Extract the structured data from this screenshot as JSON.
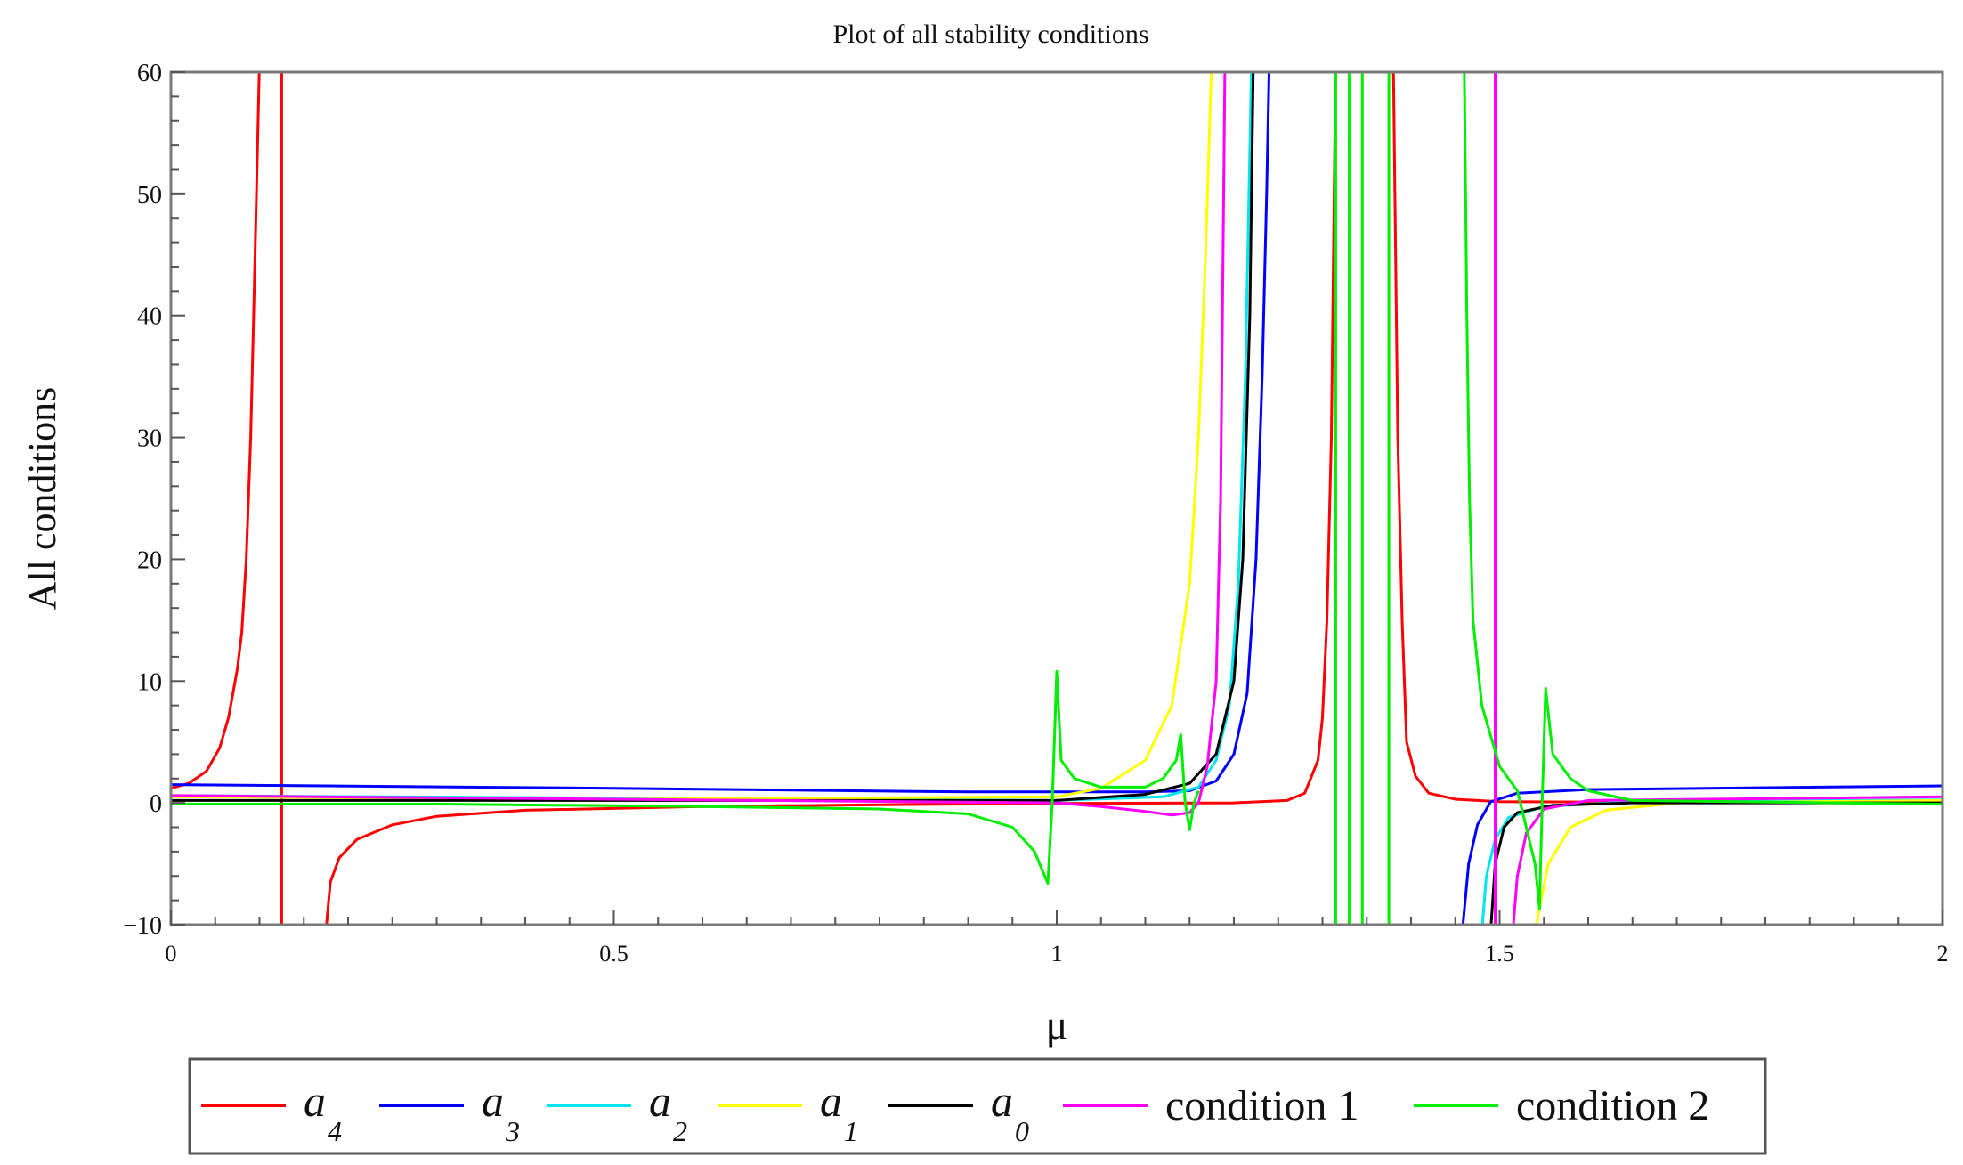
{
  "chart_data": {
    "type": "line",
    "title": "Plot of all stability conditions",
    "xlabel": "μ",
    "ylabel": "All conditions",
    "xlim": [
      0,
      2
    ],
    "ylim": [
      -10,
      60
    ],
    "x_ticks": [
      0,
      0.5,
      1,
      1.5,
      2
    ],
    "x_tick_labels": [
      "0",
      "0.5",
      "1",
      "1.5",
      "2"
    ],
    "y_ticks": [
      -10,
      0,
      10,
      20,
      30,
      40,
      50,
      60
    ],
    "y_tick_labels": [
      "−10",
      "0",
      "10",
      "20",
      "30",
      "40",
      "50",
      "60"
    ],
    "grid": false,
    "legend_position": "bottom",
    "series": [
      {
        "name": "a",
        "subscript": "4",
        "color": "#ff0000",
        "segments": [
          [
            [
              0,
              1.2
            ],
            [
              0.02,
              1.6
            ],
            [
              0.04,
              2.6
            ],
            [
              0.055,
              4.5
            ],
            [
              0.065,
              7
            ],
            [
              0.075,
              11
            ],
            [
              0.08,
              14
            ],
            [
              0.085,
              20
            ],
            [
              0.09,
              30
            ],
            [
              0.095,
              45
            ],
            [
              0.1,
              61
            ]
          ],
          [
            [
              0.125,
              -10.5
            ],
            [
              0.125,
              61
            ]
          ],
          [
            [
              0.175,
              -10.5
            ],
            [
              0.18,
              -6.5
            ],
            [
              0.19,
              -4.5
            ],
            [
              0.21,
              -3.0
            ],
            [
              0.25,
              -1.8
            ],
            [
              0.3,
              -1.1
            ],
            [
              0.4,
              -0.6
            ],
            [
              0.6,
              -0.3
            ],
            [
              0.8,
              -0.15
            ],
            [
              1.0,
              -0.05
            ],
            [
              1.2,
              0.0
            ],
            [
              1.26,
              0.2
            ],
            [
              1.28,
              0.8
            ],
            [
              1.295,
              3.5
            ],
            [
              1.3,
              7
            ],
            [
              1.305,
              15
            ],
            [
              1.31,
              30
            ],
            [
              1.315,
              61
            ]
          ],
          [
            [
              1.38,
              61
            ],
            [
              1.385,
              30
            ],
            [
              1.39,
              15
            ],
            [
              1.395,
              5
            ],
            [
              1.405,
              2.2
            ],
            [
              1.42,
              0.8
            ],
            [
              1.45,
              0.3
            ],
            [
              1.5,
              0.1
            ],
            [
              1.7,
              0.05
            ],
            [
              2.0,
              0.02
            ]
          ]
        ]
      },
      {
        "name": "a",
        "subscript": "3",
        "color": "#0000ff",
        "segments": [
          [
            [
              0,
              1.5
            ],
            [
              0.5,
              1.2
            ],
            [
              0.9,
              0.9
            ],
            [
              1.1,
              0.9
            ],
            [
              1.15,
              1.0
            ],
            [
              1.18,
              1.8
            ],
            [
              1.2,
              4
            ],
            [
              1.215,
              9
            ],
            [
              1.225,
              20
            ],
            [
              1.232,
              35
            ],
            [
              1.237,
              50
            ],
            [
              1.24,
              61
            ]
          ],
          [
            [
              1.458,
              -10.5
            ],
            [
              1.465,
              -5
            ],
            [
              1.475,
              -1.8
            ],
            [
              1.49,
              0.1
            ],
            [
              1.52,
              0.8
            ],
            [
              1.6,
              1.1
            ],
            [
              2.0,
              1.4
            ]
          ]
        ]
      },
      {
        "name": "a",
        "subscript": "2",
        "color": "#00e5ee",
        "segments": [
          [
            [
              0,
              0.6
            ],
            [
              0.5,
              0.4
            ],
            [
              1.0,
              0.2
            ],
            [
              1.12,
              0.5
            ],
            [
              1.16,
              1.3
            ],
            [
              1.18,
              3.5
            ],
            [
              1.195,
              8
            ],
            [
              1.205,
              18
            ],
            [
              1.213,
              35
            ],
            [
              1.22,
              61
            ]
          ],
          [
            [
              1.48,
              -10.5
            ],
            [
              1.485,
              -6
            ],
            [
              1.495,
              -3
            ],
            [
              1.51,
              -1.2
            ],
            [
              1.55,
              -0.3
            ],
            [
              1.65,
              0.1
            ],
            [
              2.0,
              0.25
            ]
          ]
        ]
      },
      {
        "name": "a",
        "subscript": "1",
        "color": "#ffff00",
        "segments": [
          [
            [
              0,
              0.5
            ],
            [
              0.5,
              0.3
            ],
            [
              1.0,
              0.5
            ],
            [
              1.05,
              1.2
            ],
            [
              1.1,
              3.5
            ],
            [
              1.13,
              8
            ],
            [
              1.15,
              18
            ],
            [
              1.16,
              30
            ],
            [
              1.168,
              45
            ],
            [
              1.175,
              61
            ]
          ],
          [
            [
              1.54,
              -10.5
            ],
            [
              1.555,
              -5
            ],
            [
              1.58,
              -2
            ],
            [
              1.62,
              -0.6
            ],
            [
              1.7,
              0
            ],
            [
              2.0,
              0.2
            ]
          ]
        ]
      },
      {
        "name": "a",
        "subscript": "0",
        "color": "#000000",
        "segments": [
          [
            [
              0,
              0.2
            ],
            [
              0.5,
              0.2
            ],
            [
              1.0,
              0.2
            ],
            [
              1.1,
              0.7
            ],
            [
              1.15,
              1.6
            ],
            [
              1.18,
              4
            ],
            [
              1.2,
              10
            ],
            [
              1.21,
              20
            ],
            [
              1.218,
              40
            ],
            [
              1.222,
              61
            ]
          ],
          [
            [
              1.49,
              -10.5
            ],
            [
              1.495,
              -5
            ],
            [
              1.505,
              -2
            ],
            [
              1.52,
              -0.8
            ],
            [
              1.56,
              -0.2
            ],
            [
              1.65,
              0
            ],
            [
              2.0,
              0
            ]
          ]
        ]
      },
      {
        "name": "condition 1",
        "subscript": "",
        "color": "#ff00ff",
        "segments": [
          [
            [
              0,
              0.6
            ],
            [
              0.5,
              0.3
            ],
            [
              1.0,
              0.0
            ],
            [
              1.05,
              -0.3
            ],
            [
              1.1,
              -0.7
            ],
            [
              1.13,
              -1.0
            ],
            [
              1.15,
              -0.8
            ],
            [
              1.16,
              0.0
            ],
            [
              1.17,
              3
            ],
            [
              1.18,
              10
            ],
            [
              1.185,
              25
            ],
            [
              1.19,
              61
            ]
          ],
          [
            [
              1.495,
              -10.5
            ],
            [
              1.495,
              61
            ]
          ],
          [
            [
              1.515,
              -10.5
            ],
            [
              1.52,
              -6
            ],
            [
              1.53,
              -2.5
            ],
            [
              1.55,
              -0.5
            ],
            [
              1.6,
              0.2
            ],
            [
              2.0,
              0.5
            ]
          ]
        ]
      },
      {
        "name": "condition 2",
        "subscript": "",
        "color": "#00ee00",
        "segments": [
          [
            [
              0,
              -0.1
            ],
            [
              0.3,
              -0.1
            ],
            [
              0.6,
              -0.3
            ],
            [
              0.8,
              -0.5
            ],
            [
              0.9,
              -0.9
            ],
            [
              0.95,
              -2.0
            ],
            [
              0.975,
              -4.0
            ],
            [
              0.99,
              -6.6
            ],
            [
              0.995,
              0
            ],
            [
              1.0,
              10.8
            ],
            [
              1.005,
              3.5
            ],
            [
              1.02,
              2
            ],
            [
              1.05,
              1.3
            ],
            [
              1.1,
              1.3
            ],
            [
              1.12,
              2
            ],
            [
              1.135,
              3.5
            ],
            [
              1.14,
              5.6
            ],
            [
              1.145,
              0
            ],
            [
              1.15,
              -2.2
            ],
            [
              1.155,
              0
            ],
            [
              1.16,
              1
            ]
          ],
          [
            [
              1.315,
              -10.5
            ],
            [
              1.315,
              61
            ]
          ],
          [
            [
              1.33,
              -10.5
            ],
            [
              1.33,
              61
            ]
          ],
          [
            [
              1.345,
              -10.5
            ],
            [
              1.345,
              61
            ]
          ],
          [
            [
              1.375,
              -10.5
            ],
            [
              1.375,
              61
            ]
          ],
          [
            [
              1.46,
              61
            ],
            [
              1.463,
              40
            ],
            [
              1.466,
              25
            ],
            [
              1.47,
              15
            ],
            [
              1.48,
              8
            ],
            [
              1.5,
              3
            ],
            [
              1.52,
              1
            ],
            [
              1.53,
              -2
            ],
            [
              1.54,
              -5
            ],
            [
              1.545,
              -8.7
            ],
            [
              1.548,
              0
            ],
            [
              1.552,
              9.4
            ],
            [
              1.56,
              4
            ],
            [
              1.58,
              2
            ],
            [
              1.6,
              1
            ],
            [
              1.65,
              0.2
            ],
            [
              2.0,
              -0.1
            ]
          ]
        ]
      }
    ]
  }
}
